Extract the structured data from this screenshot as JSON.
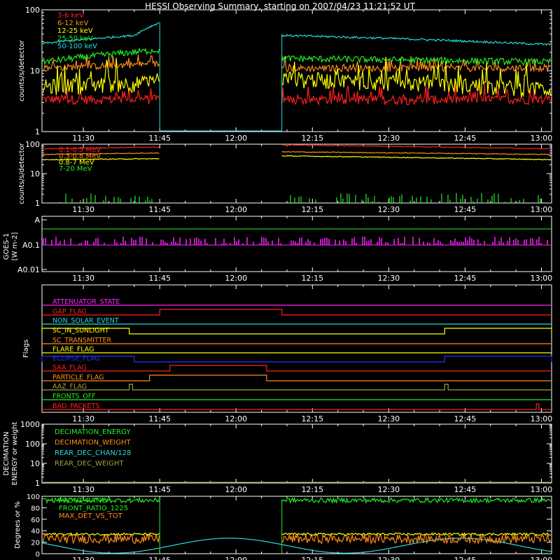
{
  "title": "HESSI Observing Summary, starting on 2007/04/23 11:21:52 UT",
  "time_ticks": [
    "11:30",
    "11:45",
    "12:00",
    "12:15",
    "12:30",
    "12:45",
    "13:00"
  ],
  "colors": {
    "red": "#ff2020",
    "orange": "#ff8c1a",
    "yellow": "#ffff00",
    "green": "#22ee22",
    "cyan": "#22dddd",
    "magenta": "#ff22ff",
    "blue": "#2233ff",
    "olive": "#a0a040",
    "white": "#ffffff"
  },
  "chart_data": [
    {
      "type": "line",
      "panel": "count-rates",
      "ylabel": "counts/s/detector",
      "yscale": "log",
      "ylim": [
        1,
        100
      ],
      "ytick_labels": [
        "1",
        "10",
        "100"
      ],
      "x_range": [
        "11:21:52",
        "13:02:00"
      ],
      "data_gap": [
        "11:45",
        "12:09"
      ],
      "series": [
        {
          "name": "3-6 keV",
          "color": "red",
          "values": [
            {
              "x": "11:22",
              "y": 3.4
            },
            {
              "x": "11:45",
              "y": 3.4
            },
            {
              "x": "12:09",
              "y": 3.3
            },
            {
              "x": "13:01",
              "y": 3.4
            }
          ]
        },
        {
          "name": "6-12 keV",
          "color": "orange",
          "values": [
            {
              "x": "11:22",
              "y": 11
            },
            {
              "x": "11:45",
              "y": 13
            },
            {
              "x": "12:09",
              "y": 11
            },
            {
              "x": "13:01",
              "y": 11
            }
          ]
        },
        {
          "name": "12-25 keV",
          "color": "yellow",
          "values": [
            {
              "x": "11:22",
              "y": 5.5
            },
            {
              "x": "11:45",
              "y": 6.5
            },
            {
              "x": "12:09",
              "y": 7.5
            },
            {
              "x": "13:01",
              "y": 5
            }
          ]
        },
        {
          "name": "25-50 keV",
          "color": "green",
          "values": [
            {
              "x": "11:22",
              "y": 14
            },
            {
              "x": "11:45",
              "y": 22
            },
            {
              "x": "12:09",
              "y": 16
            },
            {
              "x": "13:01",
              "y": 14
            }
          ]
        },
        {
          "name": "50-100 keV",
          "color": "cyan",
          "values": [
            {
              "x": "11:22",
              "y": 28
            },
            {
              "x": "11:40",
              "y": 38
            },
            {
              "x": "11:45",
              "y": 62
            },
            {
              "x": "12:09",
              "y": 38
            },
            {
              "x": "12:30",
              "y": 34
            },
            {
              "x": "13:01",
              "y": 27
            }
          ]
        }
      ]
    },
    {
      "type": "line",
      "panel": "gamma-rates",
      "ylabel": "counts/s/detector",
      "yscale": "log",
      "ylim": [
        1,
        100
      ],
      "ytick_labels": [
        "1",
        "10",
        "100"
      ],
      "data_gap": [
        "11:45",
        "12:09"
      ],
      "series": [
        {
          "name": "0.1-0.3 MeV",
          "color": "red",
          "values": [
            {
              "x": "11:22",
              "y": 70
            },
            {
              "x": "11:45",
              "y": 80
            },
            {
              "x": "12:09",
              "y": 95
            },
            {
              "x": "12:40",
              "y": 80
            },
            {
              "x": "13:01",
              "y": 70
            }
          ]
        },
        {
          "name": "0.3-0.8 MeV",
          "color": "orange",
          "values": [
            {
              "x": "11:22",
              "y": 45
            },
            {
              "x": "11:45",
              "y": 50
            },
            {
              "x": "12:09",
              "y": 55
            },
            {
              "x": "13:01",
              "y": 45
            }
          ]
        },
        {
          "name": "0.8-7 MeV",
          "color": "yellow",
          "values": [
            {
              "x": "11:22",
              "y": 30
            },
            {
              "x": "11:45",
              "y": 32
            },
            {
              "x": "12:09",
              "y": 40
            },
            {
              "x": "13:01",
              "y": 30
            }
          ]
        },
        {
          "name": "7-20 MeV",
          "color": "green",
          "values": [
            {
              "x": "11:22",
              "y": 1
            },
            {
              "x": "13:01",
              "y": 1
            }
          ]
        }
      ]
    },
    {
      "type": "line",
      "panel": "goes",
      "ylabel": "GOES-1 [W m-2]",
      "ytick_labels": [
        "A0.01",
        "A0.1",
        "A"
      ],
      "series": [
        {
          "name": "GOES",
          "color": "magenta",
          "values": [
            {
              "x": "11:22",
              "y": "A0.1"
            },
            {
              "x": "13:01",
              "y": "A0.1"
            }
          ]
        }
      ]
    },
    {
      "type": "line",
      "panel": "flags",
      "ylabel": "Flags",
      "series": [
        {
          "name": "ATTENUATOR_STATE",
          "color": "magenta"
        },
        {
          "name": "GAP_FLAG",
          "color": "red"
        },
        {
          "name": "NON_SOLAR_EVENT",
          "color": "cyan"
        },
        {
          "name": "SC_IN_SUNLIGHT",
          "color": "yellow"
        },
        {
          "name": "SC_TRANSMITTER",
          "color": "orange"
        },
        {
          "name": "FLARE_FLAG",
          "color": "yellow"
        },
        {
          "name": "ECLIPSE_FLAG",
          "color": "blue"
        },
        {
          "name": "SAA_FLAG",
          "color": "red"
        },
        {
          "name": "PARTICLE_FLAG",
          "color": "orange"
        },
        {
          "name": "AAZ_FLAG",
          "color": "olive"
        },
        {
          "name": "FRONTS_OFF",
          "color": "green"
        },
        {
          "name": "BAD_PACKETS",
          "color": "red"
        }
      ]
    },
    {
      "type": "line",
      "panel": "decimation",
      "ylabel": "DECIMATION ENERGY or weight",
      "yscale": "log",
      "ytick_labels": [
        "1",
        "10",
        "100",
        "1000"
      ],
      "series": [
        {
          "name": "DECIMATION_ENERGY",
          "color": "green"
        },
        {
          "name": "DECIMATION_WEIGHT",
          "color": "orange"
        },
        {
          "name": "REAR_DEC_CHAN/128",
          "color": "cyan"
        },
        {
          "name": "REAR_DEC_WEIGHT",
          "color": "olive"
        }
      ]
    },
    {
      "type": "line",
      "panel": "ratios",
      "ylabel": "Degrees or %",
      "ylim": [
        0,
        100
      ],
      "ytick_labels": [
        "0",
        "20",
        "40",
        "60",
        "80",
        "100"
      ],
      "series": [
        {
          "name": "FRONT_RATIO",
          "color": "cyan"
        },
        {
          "name": "FRONT_RATIO_1225",
          "color": "green"
        },
        {
          "name": "MAX_DET_VS_TOT",
          "color": "orange"
        }
      ]
    }
  ]
}
